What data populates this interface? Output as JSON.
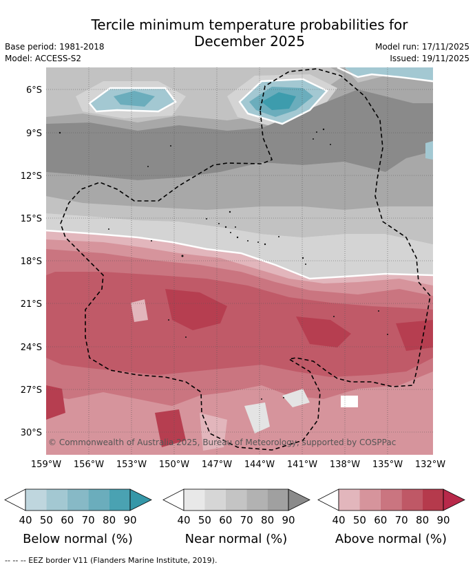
{
  "title_line1": "Tercile minimum temperature probabilities for",
  "title_line2": "December 2025",
  "base_period": "Base period: 1981-2018",
  "model": "Model: ACCESS-S2",
  "model_run": "Model run: 17/11/2025",
  "issued": "Issued: 19/11/2025",
  "copyright": "© Commonwealth of Australia 2025, Bureau of Meteorology, supported by COSPPac",
  "footer": "--  --  -- EEZ border V11 (Flanders Marine Institute, 2019).",
  "axes": {
    "lat_labels": [
      "6°S",
      "9°S",
      "12°S",
      "15°S",
      "18°S",
      "21°S",
      "24°S",
      "27°S",
      "30°S"
    ],
    "lon_labels": [
      "159°W",
      "156°W",
      "153°W",
      "150°W",
      "147°W",
      "144°W",
      "141°W",
      "138°W",
      "135°W",
      "132°W"
    ]
  },
  "colorbars": [
    {
      "title": "Below normal (%)",
      "ticks": [
        "40",
        "50",
        "60",
        "70",
        "80",
        "90"
      ],
      "colors": [
        "#ffffff",
        "#bfd6de",
        "#a3c8d2",
        "#87b9c6",
        "#6badbc",
        "#4aa2b2",
        "#3597a8"
      ]
    },
    {
      "title": "Near normal (%)",
      "ticks": [
        "40",
        "50",
        "60",
        "70",
        "80",
        "90"
      ],
      "colors": [
        "#ffffff",
        "#e8e8e8",
        "#d6d6d6",
        "#c4c4c4",
        "#b2b2b2",
        "#a0a0a0",
        "#8a8a8a"
      ]
    },
    {
      "title": "Above normal (%)",
      "ticks": [
        "40",
        "50",
        "60",
        "70",
        "80",
        "90"
      ],
      "colors": [
        "#ffffff",
        "#e2b6bc",
        "#d6949c",
        "#ca7580",
        "#bf5866",
        "#b53a4c",
        "#b8294a"
      ]
    }
  ],
  "map_colors": {
    "near40": "#e4e4e4",
    "near50": "#d4d4d4",
    "near60": "#c2c2c2",
    "near70": "#a8a8a8",
    "near80": "#8a8a8a",
    "below50": "#a3c8d2",
    "below70": "#6badbc",
    "below90": "#3d9cad",
    "above40": "#e2b6bc",
    "above50": "#d6949c",
    "above60": "#ca7580",
    "above70": "#c05a68",
    "above80": "#b63e50"
  }
}
